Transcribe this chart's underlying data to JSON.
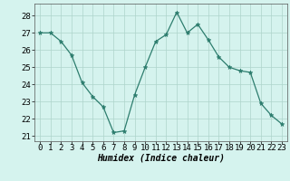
{
  "x": [
    0,
    1,
    2,
    3,
    4,
    5,
    6,
    7,
    8,
    9,
    10,
    11,
    12,
    13,
    14,
    15,
    16,
    17,
    18,
    19,
    20,
    21,
    22,
    23
  ],
  "y": [
    27.0,
    27.0,
    26.5,
    25.7,
    24.1,
    23.3,
    22.7,
    21.2,
    21.3,
    23.4,
    25.0,
    26.5,
    26.9,
    28.2,
    27.0,
    27.5,
    26.6,
    25.6,
    25.0,
    24.8,
    24.7,
    22.9,
    22.2,
    21.7
  ],
  "line_color": "#2d7d6e",
  "marker": "*",
  "marker_size": 3.5,
  "bg_color": "#d5f3ee",
  "grid_color": "#aed4cb",
  "xlabel": "Humidex (Indice chaleur)",
  "ylim": [
    20.7,
    28.7
  ],
  "xlim": [
    -0.5,
    23.5
  ],
  "yticks": [
    21,
    22,
    23,
    24,
    25,
    26,
    27,
    28
  ],
  "xticks": [
    0,
    1,
    2,
    3,
    4,
    5,
    6,
    7,
    8,
    9,
    10,
    11,
    12,
    13,
    14,
    15,
    16,
    17,
    18,
    19,
    20,
    21,
    22,
    23
  ],
  "xlabel_fontsize": 7,
  "tick_fontsize": 6.5
}
